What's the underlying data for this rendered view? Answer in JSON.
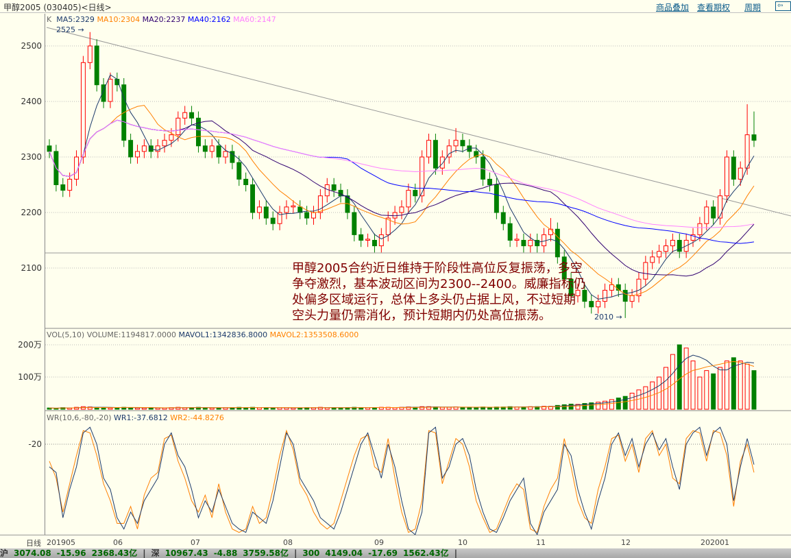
{
  "header": {
    "title": "甲醇2005 (030405)<日线>",
    "links": [
      "商品叠加",
      "查看期权",
      "周期"
    ],
    "nav_icon": "arrow-left-icon"
  },
  "main_legend": {
    "k": "K",
    "ma5": "MA5:2329",
    "ma10": "MA10:2304",
    "ma20": "MA20:2237",
    "ma40": "MA40:2162",
    "ma60": "MA60:2147"
  },
  "vol_legend": {
    "name": "VOL(5,10)",
    "volume": "VOLUME:1194817.0000",
    "mavol1": "MAVOL1:1342836.8000",
    "mavol2": "MAVOL2:1353508.6000"
  },
  "wr_legend": {
    "name": "WR(10,6,-80,-20)",
    "wr1": "WR1:-37.6812",
    "wr2": "WR2:-44.8276"
  },
  "annotations": {
    "high": "2525",
    "low": "2010"
  },
  "note": "甲醇2005合约近日维持于阶段性高位反复振荡，多空争夺激烈，基本波动区间为2300--2400。威廉指标仍处偏多区域运行，总体上多头仍占据上风，不过短期空头力量仍需消化，预计短期内仍处高位振荡。",
  "xaxis_label": "日线",
  "status": [
    "沪",
    "3074.08",
    "-15.96",
    "2368.43亿",
    "|",
    "深",
    "10967.43",
    "-4.88",
    "3759.58亿",
    "|",
    "300",
    "4149.04",
    "-17.69",
    "1562.43亿",
    "|"
  ],
  "colors": {
    "up": "#ff0000",
    "down": "#008000",
    "ma5": "#1c3a6b",
    "ma10": "#ff8000",
    "ma20": "#300070",
    "ma40": "#0000ff",
    "ma60": "#ff80ff",
    "wr1": "#1c3a6b",
    "wr2": "#ff8000"
  },
  "chart_data": {
    "type": "candlestick",
    "price_ticks": [
      2500,
      2400,
      2300,
      2200,
      2100
    ],
    "volume_ticks": [
      "200万",
      "100万"
    ],
    "wr_ticks": [
      "-20"
    ],
    "x_ticks": [
      "201905",
      "06",
      "07",
      "08",
      "09",
      "10",
      "11",
      "12",
      "202001"
    ],
    "candles": [
      [
        2320,
        2332,
        2298,
        2310
      ],
      [
        2310,
        2322,
        2238,
        2250
      ],
      [
        2250,
        2262,
        2228,
        2240
      ],
      [
        2240,
        2272,
        2228,
        2260
      ],
      [
        2260,
        2312,
        2248,
        2300
      ],
      [
        2300,
        2482,
        2288,
        2470
      ],
      [
        2470,
        2525,
        2458,
        2500
      ],
      [
        2500,
        2512,
        2418,
        2430
      ],
      [
        2430,
        2442,
        2388,
        2400
      ],
      [
        2400,
        2452,
        2388,
        2440
      ],
      [
        2440,
        2452,
        2418,
        2430
      ],
      [
        2430,
        2442,
        2318,
        2330
      ],
      [
        2330,
        2342,
        2288,
        2300
      ],
      [
        2300,
        2322,
        2288,
        2310
      ],
      [
        2310,
        2332,
        2298,
        2320
      ],
      [
        2320,
        2332,
        2298,
        2310
      ],
      [
        2310,
        2332,
        2298,
        2320
      ],
      [
        2320,
        2342,
        2308,
        2330
      ],
      [
        2330,
        2352,
        2318,
        2340
      ],
      [
        2340,
        2382,
        2328,
        2370
      ],
      [
        2370,
        2392,
        2358,
        2380
      ],
      [
        2380,
        2392,
        2358,
        2370
      ],
      [
        2370,
        2382,
        2308,
        2320
      ],
      [
        2320,
        2332,
        2298,
        2310
      ],
      [
        2310,
        2332,
        2298,
        2320
      ],
      [
        2320,
        2332,
        2288,
        2300
      ],
      [
        2300,
        2322,
        2288,
        2310
      ],
      [
        2310,
        2322,
        2278,
        2290
      ],
      [
        2290,
        2302,
        2248,
        2260
      ],
      [
        2260,
        2272,
        2238,
        2250
      ],
      [
        2250,
        2262,
        2188,
        2200
      ],
      [
        2200,
        2222,
        2188,
        2210
      ],
      [
        2210,
        2222,
        2178,
        2190
      ],
      [
        2190,
        2202,
        2168,
        2180
      ],
      [
        2180,
        2212,
        2168,
        2200
      ],
      [
        2200,
        2222,
        2188,
        2210
      ],
      [
        2210,
        2222,
        2198,
        2212
      ],
      [
        2210,
        2222,
        2188,
        2200
      ],
      [
        2200,
        2212,
        2178,
        2190
      ],
      [
        2190,
        2212,
        2178,
        2200
      ],
      [
        2200,
        2242,
        2188,
        2230
      ],
      [
        2230,
        2262,
        2218,
        2250
      ],
      [
        2250,
        2262,
        2228,
        2240
      ],
      [
        2240,
        2252,
        2218,
        2230
      ],
      [
        2230,
        2242,
        2188,
        2200
      ],
      [
        2200,
        2212,
        2148,
        2160
      ],
      [
        2160,
        2172,
        2138,
        2150
      ],
      [
        2150,
        2162,
        2138,
        2152
      ],
      [
        2150,
        2162,
        2128,
        2140
      ],
      [
        2140,
        2172,
        2128,
        2160
      ],
      [
        2160,
        2202,
        2148,
        2190
      ],
      [
        2190,
        2212,
        2178,
        2200
      ],
      [
        2200,
        2222,
        2188,
        2210
      ],
      [
        2210,
        2252,
        2198,
        2240
      ],
      [
        2240,
        2252,
        2218,
        2230
      ],
      [
        2230,
        2312,
        2218,
        2300
      ],
      [
        2300,
        2342,
        2288,
        2330
      ],
      [
        2330,
        2342,
        2268,
        2280
      ],
      [
        2280,
        2312,
        2268,
        2300
      ],
      [
        2300,
        2332,
        2288,
        2320
      ],
      [
        2320,
        2352,
        2308,
        2330
      ],
      [
        2330,
        2342,
        2308,
        2320
      ],
      [
        2320,
        2332,
        2298,
        2310
      ],
      [
        2310,
        2322,
        2288,
        2300
      ],
      [
        2300,
        2312,
        2248,
        2260
      ],
      [
        2260,
        2272,
        2238,
        2250
      ],
      [
        2250,
        2262,
        2188,
        2200
      ],
      [
        2200,
        2212,
        2168,
        2180
      ],
      [
        2180,
        2192,
        2138,
        2150
      ],
      [
        2150,
        2162,
        2138,
        2152
      ],
      [
        2150,
        2162,
        2128,
        2140
      ],
      [
        2140,
        2162,
        2128,
        2150
      ],
      [
        2150,
        2162,
        2128,
        2140
      ],
      [
        2140,
        2172,
        2128,
        2160
      ],
      [
        2160,
        2190,
        2148,
        2170
      ],
      [
        2170,
        2182,
        2108,
        2120
      ],
      [
        2120,
        2132,
        2068,
        2080
      ],
      [
        2080,
        2092,
        2038,
        2050
      ],
      [
        2050,
        2072,
        2038,
        2060
      ],
      [
        2060,
        2072,
        2028,
        2040
      ],
      [
        2040,
        2052,
        2018,
        2030
      ],
      [
        2030,
        2052,
        2018,
        2040
      ],
      [
        2040,
        2072,
        2028,
        2060
      ],
      [
        2060,
        2082,
        2048,
        2070
      ],
      [
        2070,
        2082,
        2048,
        2060
      ],
      [
        2060,
        2072,
        2010,
        2040
      ],
      [
        2040,
        2062,
        2028,
        2050
      ],
      [
        2050,
        2092,
        2038,
        2080
      ],
      [
        2080,
        2122,
        2068,
        2110
      ],
      [
        2110,
        2132,
        2098,
        2120
      ],
      [
        2120,
        2142,
        2108,
        2130
      ],
      [
        2130,
        2152,
        2118,
        2140
      ],
      [
        2140,
        2162,
        2128,
        2150
      ],
      [
        2150,
        2162,
        2118,
        2130
      ],
      [
        2130,
        2162,
        2118,
        2150
      ],
      [
        2150,
        2172,
        2138,
        2160
      ],
      [
        2160,
        2192,
        2148,
        2180
      ],
      [
        2180,
        2222,
        2168,
        2210
      ],
      [
        2210,
        2222,
        2178,
        2190
      ],
      [
        2190,
        2242,
        2178,
        2230
      ],
      [
        2230,
        2312,
        2218,
        2300
      ],
      [
        2300,
        2312,
        2248,
        2260
      ],
      [
        2260,
        2292,
        2248,
        2280
      ],
      [
        2280,
        2395,
        2268,
        2340
      ],
      [
        2340,
        2382,
        2318,
        2330
      ]
    ],
    "volume_wan": [
      4,
      3,
      5,
      4,
      6,
      8,
      7,
      5,
      5,
      4,
      5,
      6,
      5,
      4,
      4,
      5,
      4,
      4,
      5,
      6,
      5,
      5,
      6,
      5,
      4,
      4,
      5,
      5,
      6,
      5,
      6,
      5,
      5,
      4,
      5,
      5,
      4,
      4,
      5,
      5,
      6,
      5,
      5,
      4,
      5,
      6,
      5,
      5,
      5,
      6,
      6,
      5,
      6,
      7,
      6,
      8,
      8,
      7,
      6,
      6,
      7,
      6,
      6,
      5,
      7,
      6,
      7,
      7,
      8,
      7,
      7,
      8,
      8,
      9,
      9,
      12,
      14,
      16,
      15,
      18,
      20,
      22,
      25,
      30,
      35,
      40,
      50,
      60,
      70,
      85,
      100,
      130,
      170,
      200,
      190,
      150,
      100,
      120,
      110,
      130,
      150,
      160,
      150,
      140,
      120
    ],
    "wr1": [
      -40,
      -45,
      -85,
      -60,
      -40,
      -10,
      -5,
      -20,
      -50,
      -60,
      -85,
      -95,
      -80,
      -90,
      -70,
      -60,
      -50,
      -20,
      -10,
      -30,
      -40,
      -60,
      -85,
      -70,
      -80,
      -60,
      -75,
      -90,
      -95,
      -98,
      -80,
      -85,
      -90,
      -70,
      -40,
      -10,
      -20,
      -50,
      -60,
      -70,
      -85,
      -90,
      -95,
      -80,
      -60,
      -40,
      -20,
      -10,
      -30,
      -50,
      -20,
      -40,
      -70,
      -95,
      -100,
      -80,
      -10,
      -5,
      -50,
      -40,
      -20,
      -15,
      -30,
      -60,
      -80,
      -95,
      -98,
      -85,
      -70,
      -60,
      -50,
      -90,
      -100,
      -80,
      -70,
      -60,
      -20,
      -30,
      -60,
      -80,
      -95,
      -70,
      -50,
      -20,
      -10,
      -30,
      -15,
      -40,
      -20,
      -10,
      -25,
      -15,
      -40,
      -60,
      -20,
      -10,
      -5,
      -30,
      -10,
      -5,
      -20,
      -70,
      -40,
      -15,
      -38
    ],
    "wr2": [
      -35,
      -50,
      -80,
      -55,
      -30,
      -8,
      -10,
      -30,
      -55,
      -70,
      -90,
      -90,
      -75,
      -95,
      -65,
      -50,
      -45,
      -15,
      -12,
      -35,
      -50,
      -70,
      -80,
      -65,
      -85,
      -55,
      -80,
      -95,
      -98,
      -95,
      -75,
      -90,
      -85,
      -60,
      -30,
      -8,
      -25,
      -55,
      -65,
      -80,
      -90,
      -95,
      -90,
      -70,
      -50,
      -30,
      -15,
      -12,
      -40,
      -45,
      -15,
      -50,
      -80,
      -98,
      -95,
      -70,
      -8,
      -10,
      -55,
      -35,
      -15,
      -20,
      -40,
      -70,
      -85,
      -98,
      -95,
      -80,
      -65,
      -55,
      -60,
      -95,
      -98,
      -75,
      -60,
      -50,
      -15,
      -40,
      -70,
      -85,
      -90,
      -60,
      -40,
      -15,
      -12,
      -35,
      -20,
      -45,
      -15,
      -8,
      -30,
      -20,
      -50,
      -55,
      -15,
      -8,
      -10,
      -35,
      -8,
      -10,
      -30,
      -75,
      -35,
      -20,
      -45
    ]
  }
}
